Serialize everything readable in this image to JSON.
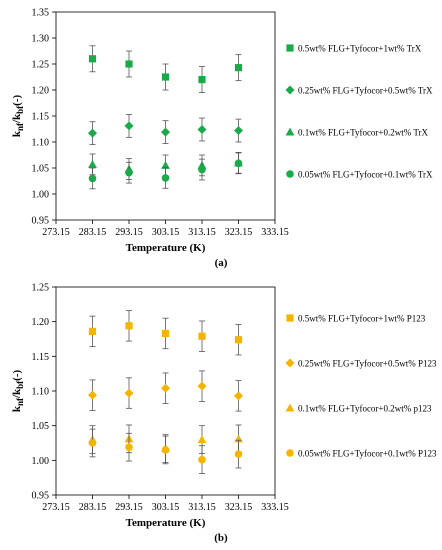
{
  "chart_data": [
    {
      "type": "scatter",
      "panel_label": "(a)",
      "xlabel": "Temperature (K)",
      "ylabel": {
        "main": "k",
        "sub1": "nf",
        "sep": "/k",
        "sub2": "bf",
        "unit": "(-)"
      },
      "xlim": [
        273.15,
        333.15
      ],
      "ylim": [
        0.95,
        1.35
      ],
      "x_ticks": [
        "273.15",
        "283.15",
        "293.15",
        "303.15",
        "313.15",
        "323.15",
        "333.15"
      ],
      "y_ticks": [
        "0.95",
        "1.00",
        "1.05",
        "1.10",
        "1.15",
        "1.20",
        "1.25",
        "1.30",
        "1.35"
      ],
      "legend_position": "right",
      "series": [
        {
          "name": "0.5wt% FLG+Tyfocor+1wt% TrX",
          "marker": "square",
          "color": "#1aaa4a",
          "x": [
            283.15,
            293.15,
            303.15,
            313.15,
            323.15
          ],
          "y": [
            1.26,
            1.25,
            1.225,
            1.22,
            1.243
          ],
          "err": [
            0.025,
            0.025,
            0.025,
            0.025,
            0.025
          ]
        },
        {
          "name": "0.25wt% FLG+Tyfocor+0.5wt% TrX",
          "marker": "diamond",
          "color": "#1aaa4a",
          "x": [
            283.15,
            293.15,
            303.15,
            313.15,
            323.15
          ],
          "y": [
            1.117,
            1.131,
            1.119,
            1.124,
            1.122
          ],
          "err": [
            0.022,
            0.022,
            0.022,
            0.022,
            0.022
          ]
        },
        {
          "name": "0.1wt% FLG+Tyfocor+0.2wt% TrX",
          "marker": "triangle",
          "color": "#1aaa4a",
          "x": [
            283.15,
            293.15,
            303.15,
            313.15,
            323.15
          ],
          "y": [
            1.057,
            1.048,
            1.055,
            1.055,
            1.06
          ],
          "err": [
            0.02,
            0.02,
            0.02,
            0.02,
            0.02
          ]
        },
        {
          "name": "0.05wt% FLG+Tyfocor+0.1wt% TrX",
          "marker": "circle",
          "color": "#1aaa4a",
          "x": [
            283.15,
            293.15,
            303.15,
            313.15,
            323.15
          ],
          "y": [
            1.03,
            1.041,
            1.031,
            1.047,
            1.059
          ],
          "err": [
            0.02,
            0.02,
            0.02,
            0.02,
            0.02
          ]
        }
      ]
    },
    {
      "type": "scatter",
      "panel_label": "(b)",
      "xlabel": "Temperature (K)",
      "ylabel": {
        "main": "k",
        "sub1": "nf",
        "sep": "/k",
        "sub2": "bf",
        "unit": "(-)"
      },
      "xlim": [
        273.15,
        333.15
      ],
      "ylim": [
        0.95,
        1.25
      ],
      "x_ticks": [
        "273.15",
        "283.15",
        "293.15",
        "303.15",
        "313.15",
        "323.15",
        "333.15"
      ],
      "y_ticks": [
        "0.95",
        "1.00",
        "1.05",
        "1.10",
        "1.15",
        "1.20",
        "1.25"
      ],
      "legend_position": "right",
      "series": [
        {
          "name": "0.5wt% FLG+Tyfocor+1wt% P123",
          "marker": "square",
          "color": "#f5b400",
          "x": [
            283.15,
            293.15,
            303.15,
            313.15,
            323.15
          ],
          "y": [
            1.186,
            1.194,
            1.183,
            1.179,
            1.174
          ],
          "err": [
            0.022,
            0.022,
            0.022,
            0.022,
            0.022
          ]
        },
        {
          "name": "0.25wt% FLG+Tyfocor+0.5wt% P123",
          "marker": "diamond",
          "color": "#f5b400",
          "x": [
            283.15,
            293.15,
            303.15,
            313.15,
            323.15
          ],
          "y": [
            1.094,
            1.097,
            1.104,
            1.107,
            1.093
          ],
          "err": [
            0.022,
            0.022,
            0.022,
            0.022,
            0.022
          ]
        },
        {
          "name": "0.1wt% FLG+Tyfocor+0.2wt% p123",
          "marker": "triangle",
          "color": "#f5b400",
          "x": [
            283.15,
            293.15,
            303.15,
            313.15,
            323.15
          ],
          "y": [
            1.03,
            1.031,
            1.017,
            1.03,
            1.031
          ],
          "err": [
            0.02,
            0.02,
            0.02,
            0.02,
            0.02
          ]
        },
        {
          "name": "0.05wt% FLG+Tyfocor+0.1wt% P123",
          "marker": "circle",
          "color": "#f5b400",
          "x": [
            283.15,
            293.15,
            303.15,
            313.15,
            323.15
          ],
          "y": [
            1.025,
            1.019,
            1.015,
            1.001,
            1.009
          ],
          "err": [
            0.02,
            0.02,
            0.02,
            0.02,
            0.02
          ]
        }
      ]
    }
  ]
}
